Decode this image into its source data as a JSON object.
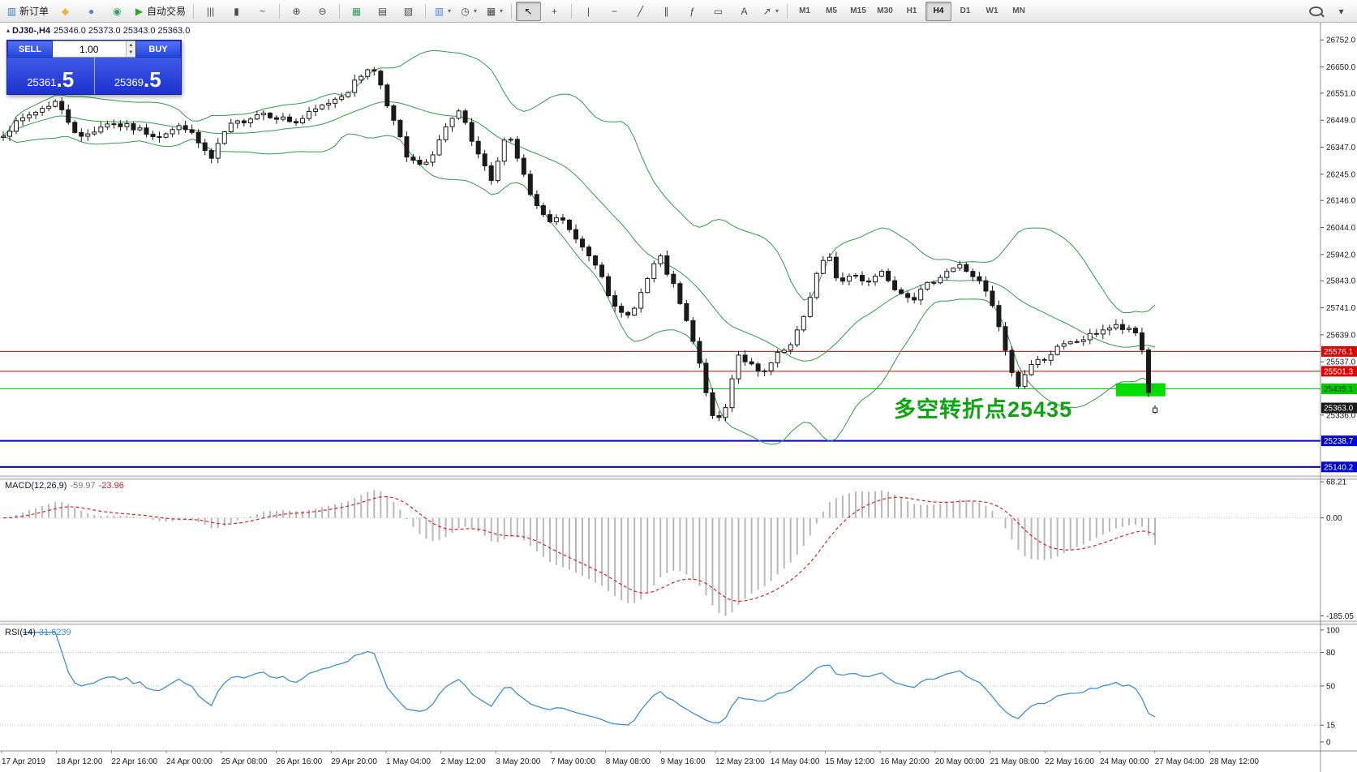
{
  "toolbar": {
    "items": [
      {
        "name": "new-order-button",
        "icon": "new-order-icon",
        "glyph": "▥",
        "glyph_color": "#3f72c8",
        "label": "新订单"
      },
      {
        "name": "favorites-button",
        "icon": "diamond-icon",
        "glyph": "◆",
        "glyph_color": "#e9b53b"
      },
      {
        "name": "community-button",
        "icon": "community-icon",
        "glyph": "●",
        "glyph_color": "#4a86d8"
      },
      {
        "name": "market-button",
        "icon": "market-icon",
        "glyph": "◉",
        "glyph_color": "#35a06a"
      },
      {
        "name": "autotrading-button",
        "icon": "play-icon",
        "glyph": "▶",
        "glyph_color": "#2ca52c",
        "label": "自动交易"
      },
      {
        "sep": true
      },
      {
        "name": "bar-chart-button",
        "icon": "bar-chart-icon",
        "glyph": "|||"
      },
      {
        "name": "candlestick-chart-button",
        "icon": "candlestick-icon",
        "glyph": "▮"
      },
      {
        "name": "line-chart-button",
        "icon": "line-chart-icon",
        "glyph": "~"
      },
      {
        "sep": true
      },
      {
        "name": "zoom-in-button",
        "icon": "zoom-in-icon",
        "glyph": "⊕"
      },
      {
        "name": "zoom-out-button",
        "icon": "zoom-out-icon",
        "glyph": "⊖"
      },
      {
        "sep": true
      },
      {
        "name": "tile-windows-button",
        "icon": "tile-windows-icon",
        "glyph": "▦",
        "glyph_color": "#35a06a"
      },
      {
        "name": "arrange-windows-button",
        "icon": "arrange-windows-icon",
        "glyph": "▤"
      },
      {
        "name": "cascade-windows-button",
        "icon": "cascade-windows-icon",
        "glyph": "▧"
      },
      {
        "sep": true
      },
      {
        "name": "new-chart-button",
        "icon": "new-chart-icon",
        "glyph": "▥",
        "glyph_color": "#4a86d8",
        "caret": true
      },
      {
        "name": "profiles-button",
        "icon": "clock-icon",
        "glyph": "◷",
        "caret": true
      },
      {
        "name": "indicators-button",
        "icon": "indicator-icon",
        "glyph": "▦",
        "caret": true
      },
      {
        "sep": true
      },
      {
        "name": "cursor-button",
        "icon": "cursor-icon",
        "glyph": "↖",
        "active": true
      },
      {
        "name": "crosshair-button",
        "icon": "crosshair-icon",
        "glyph": "+"
      },
      {
        "sep": true
      },
      {
        "name": "vertical-line-button",
        "icon": "vertical-line-icon",
        "glyph": "|"
      },
      {
        "name": "horizontal-line-button",
        "icon": "horizontal-line-icon",
        "glyph": "−"
      },
      {
        "name": "trendline-button",
        "icon": "trendline-icon",
        "glyph": "╱"
      },
      {
        "name": "channel-button",
        "icon": "channel-icon",
        "glyph": "∥"
      },
      {
        "name": "fibonacci-button",
        "icon": "fibonacci-icon",
        "glyph": "ƒ"
      },
      {
        "name": "shapes-button",
        "icon": "shapes-icon",
        "glyph": "▭"
      },
      {
        "name": "text-button",
        "icon": "text-icon",
        "glyph": "A"
      },
      {
        "name": "arrows-button",
        "icon": "arrow-icon",
        "glyph": "↗",
        "caret": true
      },
      {
        "sep": true
      }
    ],
    "timeframes": [
      {
        "label": "M1"
      },
      {
        "label": "M5"
      },
      {
        "label": "M15"
      },
      {
        "label": "M30"
      },
      {
        "label": "H1"
      },
      {
        "label": "H4",
        "active": true
      },
      {
        "label": "D1"
      },
      {
        "label": "W1"
      },
      {
        "label": "MN"
      }
    ],
    "right_items": [
      {
        "name": "search-button",
        "icon": "search-icon"
      },
      {
        "name": "toolbar-options-button",
        "icon": "chevron-down-icon",
        "glyph": "▾"
      }
    ]
  },
  "chart": {
    "title": {
      "symbol_period": "DJ30-,H4",
      "ohlc": "25346.0 25373.0 25343.0 25363.0"
    },
    "trade_panel": {
      "sell_label": "SELL",
      "buy_label": "BUY",
      "volume": "1.00",
      "sell_price": "25361.5",
      "buy_price": "25369.5"
    },
    "price_axis": {
      "labels": [
        "26752.0",
        "26650.0",
        "26551.0",
        "26449.0",
        "26347.0",
        "26245.0",
        "26146.0",
        "26044.0",
        "25942.0",
        "25843.0",
        "25741.0",
        "25639.0",
        "25537.0",
        "25336.0"
      ],
      "badges": [
        {
          "text": "25576.1",
          "color": "#e00000",
          "text_color": "#ffffff"
        },
        {
          "text": "25501.3",
          "color": "#e00000",
          "text_color": "#ffffff"
        },
        {
          "text": "25435.1",
          "color": "#00cc00",
          "text_color": "#003300"
        },
        {
          "text": "25363.0",
          "color": "#1a1a1a",
          "text_color": "#ffffff"
        },
        {
          "text": "25238.7",
          "color": "#0000dd",
          "text_color": "#ffffff"
        },
        {
          "text": "25140.2",
          "color": "#0000dd",
          "text_color": "#ffffff"
        }
      ]
    },
    "hlines": [
      {
        "value": 25576.1,
        "color": "#e00000",
        "width": 1
      },
      {
        "value": 25501.3,
        "color": "#e00000",
        "width": 1
      },
      {
        "value": 25435.1,
        "color": "#00cc00",
        "width": 1
      },
      {
        "value": 25238.7,
        "color": "#0000dd",
        "width": 2
      },
      {
        "value": 25140.2,
        "color": "#0000dd",
        "width": 2
      }
    ],
    "objects": {
      "rectangle": {
        "t0": 0.966,
        "t1": 1.009,
        "price_top": 25456,
        "price_bottom": 25407,
        "color": "#00dd00"
      },
      "text": {
        "value": "多空转折点25435",
        "color": "#10a310"
      }
    }
  },
  "chart_data": {
    "type": "candlestick",
    "symbol": "DJ30-",
    "timeframe": "H4",
    "current_bar": {
      "open": 25346.0,
      "high": 25373.0,
      "low": 25343.0,
      "close": 25363.0
    },
    "price_range": [
      25106,
      26817
    ],
    "candle_count": 178,
    "indicators": [
      "Bollinger Bands",
      "MACD(12,26,9)",
      "RSI(14)"
    ],
    "bollinger": {
      "period": 20,
      "deviation": 2,
      "color": "#2d9e44"
    },
    "price_path": [
      [
        0,
        26400
      ],
      [
        0.019,
        26460
      ],
      [
        0.045,
        26520
      ],
      [
        0.067,
        26380
      ],
      [
        0.09,
        26440
      ],
      [
        0.112,
        26420
      ],
      [
        0.134,
        26390
      ],
      [
        0.157,
        26430
      ],
      [
        0.181,
        26300
      ],
      [
        0.194,
        26420
      ],
      [
        0.224,
        26480
      ],
      [
        0.254,
        26440
      ],
      [
        0.276,
        26500
      ],
      [
        0.299,
        26560
      ],
      [
        0.317,
        26650
      ],
      [
        0.325,
        26620
      ],
      [
        0.336,
        26480
      ],
      [
        0.351,
        26300
      ],
      [
        0.366,
        26270
      ],
      [
        0.384,
        26420
      ],
      [
        0.397,
        26480
      ],
      [
        0.41,
        26330
      ],
      [
        0.425,
        26210
      ],
      [
        0.437,
        26420
      ],
      [
        0.448,
        26290
      ],
      [
        0.459,
        26150
      ],
      [
        0.472,
        26060
      ],
      [
        0.485,
        26080
      ],
      [
        0.496,
        26000
      ],
      [
        0.507,
        25950
      ],
      [
        0.519,
        25880
      ],
      [
        0.53,
        25740
      ],
      [
        0.541,
        25700
      ],
      [
        0.552,
        25780
      ],
      [
        0.569,
        25940
      ],
      [
        0.582,
        25820
      ],
      [
        0.597,
        25640
      ],
      [
        0.608,
        25470
      ],
      [
        0.617,
        25300
      ],
      [
        0.627,
        25360
      ],
      [
        0.637,
        25570
      ],
      [
        0.648,
        25530
      ],
      [
        0.658,
        25480
      ],
      [
        0.672,
        25560
      ],
      [
        0.685,
        25600
      ],
      [
        0.696,
        25720
      ],
      [
        0.707,
        25880
      ],
      [
        0.716,
        25940
      ],
      [
        0.726,
        25830
      ],
      [
        0.737,
        25870
      ],
      [
        0.75,
        25840
      ],
      [
        0.763,
        25880
      ],
      [
        0.776,
        25810
      ],
      [
        0.791,
        25780
      ],
      [
        0.806,
        25840
      ],
      [
        0.819,
        25880
      ],
      [
        0.83,
        25900
      ],
      [
        0.84,
        25870
      ],
      [
        0.851,
        25820
      ],
      [
        0.862,
        25710
      ],
      [
        0.872,
        25540
      ],
      [
        0.881,
        25440
      ],
      [
        0.89,
        25520
      ],
      [
        0.903,
        25550
      ],
      [
        0.916,
        25590
      ],
      [
        0.929,
        25610
      ],
      [
        0.942,
        25630
      ],
      [
        0.954,
        25660
      ],
      [
        0.966,
        25670
      ],
      [
        0.979,
        25650
      ],
      [
        0.987,
        25640
      ],
      [
        0.993,
        25440
      ],
      [
        1,
        25363
      ]
    ]
  },
  "macd_panel": {
    "title": "MACD(12,26,9)",
    "value": "-59.97",
    "signal": "-23.96",
    "axis_labels": [
      {
        "text": "68.21",
        "v": 68.21
      },
      {
        "text": "0.00",
        "v": 0
      },
      {
        "text": "-185.05",
        "v": -185.05
      }
    ],
    "range": [
      -195,
      73
    ],
    "histogram_color": "#b8b8b8",
    "signal_color": "#dd2222"
  },
  "rsi_panel": {
    "title": "RSI(14)",
    "value": "31.6239",
    "axis_labels": [
      {
        "text": "100",
        "v": 100
      },
      {
        "text": "80",
        "v": 80
      },
      {
        "text": "50",
        "v": 50
      },
      {
        "text": "15",
        "v": 15
      },
      {
        "text": "0",
        "v": 0
      }
    ],
    "levels": [
      80,
      50,
      15
    ],
    "range": [
      -8,
      105
    ],
    "line_color": "#3e8fd6"
  },
  "time_axis": {
    "labels": [
      "17 Apr 2019",
      "18 Apr 12:00",
      "22 Apr 16:00",
      "24 Apr 00:00",
      "25 Apr 08:00",
      "26 Apr 16:00",
      "29 Apr 20:00",
      "1 May 04:00",
      "2 May 12:00",
      "3 May 20:00",
      "7 May 00:00",
      "8 May 08:00",
      "9 May 16:00",
      "12 May 23:00",
      "14 May 04:00",
      "15 May 12:00",
      "16 May 20:00",
      "20 May 00:00",
      "21 May 08:00",
      "22 May 16:00",
      "24 May 00:00",
      "27 May 04:00",
      "28 May 12:00"
    ]
  }
}
